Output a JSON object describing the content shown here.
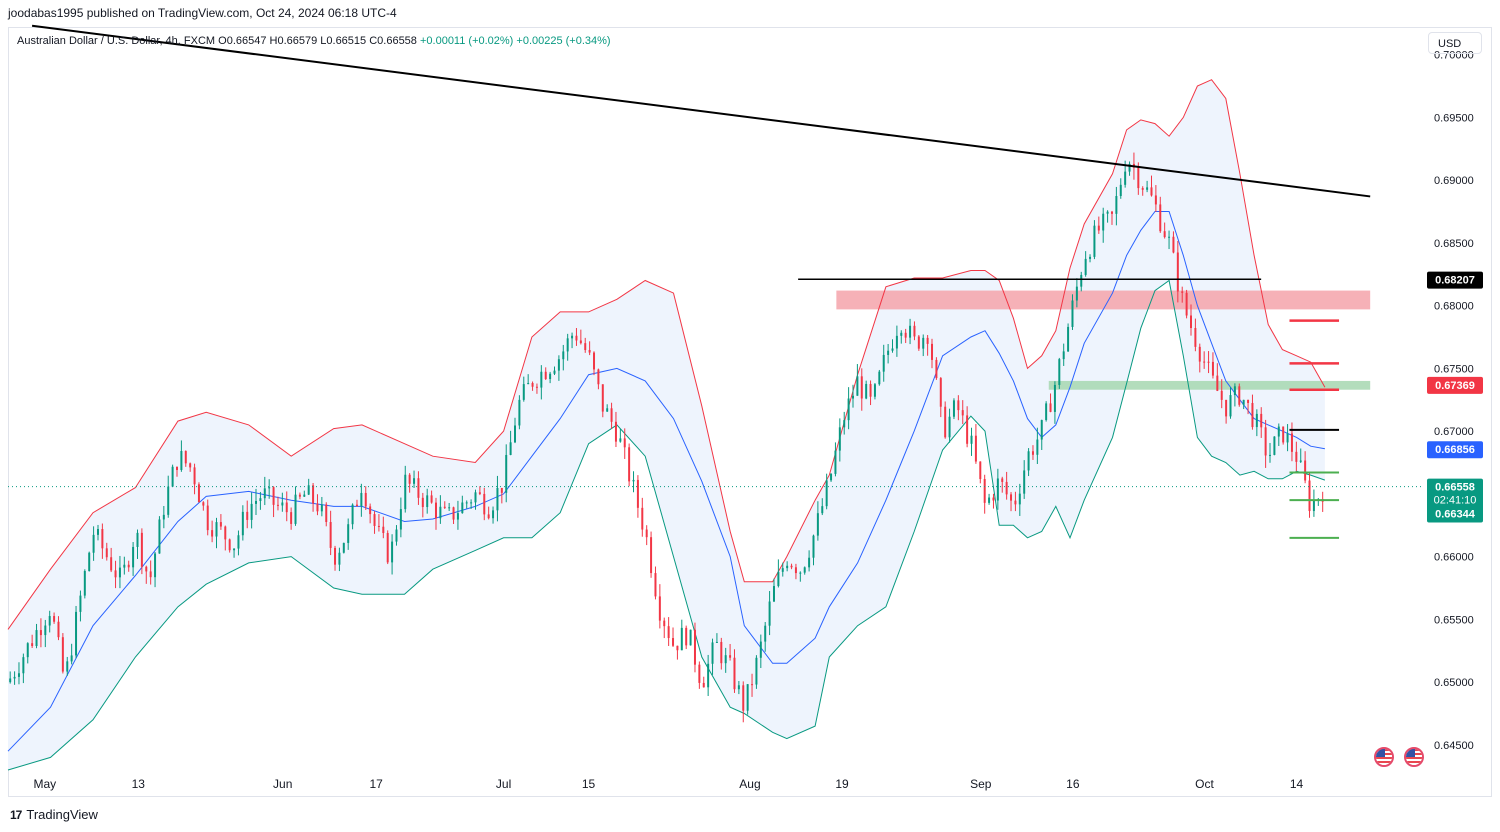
{
  "header": {
    "publisher_line": "joodabas1995 published on TradingView.com, Oct 24, 2024 06:18 UTC-4"
  },
  "symbol": {
    "name": "Australian Dollar / U.S. Dollar, 4h, FXCM",
    "ohlc": "O0.66547 H0.66579 L0.66515 C0.66558",
    "change": "+0.00011 (+0.02%) +0.00225 (+0.34%)"
  },
  "currency_button": "USD",
  "footer": {
    "brand": "TradingView",
    "logo_glyph": "17"
  },
  "colors": {
    "up": "#089981",
    "down": "#f23645",
    "upper_band": "#f23645",
    "lower_band": "#089981",
    "basis": "#2962ff",
    "band_fill": "#eef4fd"
  },
  "chart_data": {
    "type": "candlestick",
    "instrument": "AUDUSD",
    "timeframe": "4h",
    "ylim": [
      0.643,
      0.7022
    ],
    "y_ticks": [
      "0.70000",
      "0.69500",
      "0.69000",
      "0.68500",
      "0.68000",
      "0.67500",
      "0.67000",
      "0.66500",
      "0.66000",
      "0.65500",
      "0.65000",
      "0.64500"
    ],
    "x_ticks": [
      "May",
      "13",
      "Jun",
      "17",
      "Jul",
      "15",
      "Aug",
      "19",
      "Sep",
      "16",
      "Oct",
      "14"
    ],
    "price_scale_labels": [
      {
        "value": 0.68207,
        "label": "0.68207",
        "color": "#000000"
      },
      {
        "value": 0.67369,
        "label": "0.67369",
        "color": "#f23645"
      },
      {
        "value": 0.66856,
        "label": "0.66856",
        "color": "#2962ff"
      },
      {
        "value": 0.66558,
        "label": "0.66558",
        "color": "#089981"
      },
      {
        "value": 0.66344,
        "label": "0.66344",
        "color": "#089981"
      }
    ],
    "countdown": "02:41:10",
    "indicator": "Bollinger Bands",
    "series": [
      {
        "name": "Upper band",
        "points": [
          [
            0,
            0.6542
          ],
          [
            0.03,
            0.659
          ],
          [
            0.06,
            0.6635
          ],
          [
            0.09,
            0.6655
          ],
          [
            0.12,
            0.6708
          ],
          [
            0.14,
            0.6715
          ],
          [
            0.17,
            0.6705
          ],
          [
            0.2,
            0.668
          ],
          [
            0.23,
            0.6702
          ],
          [
            0.25,
            0.6705
          ],
          [
            0.28,
            0.669
          ],
          [
            0.3,
            0.668
          ],
          [
            0.33,
            0.6675
          ],
          [
            0.35,
            0.67
          ],
          [
            0.37,
            0.6775
          ],
          [
            0.39,
            0.6795
          ],
          [
            0.41,
            0.6795
          ],
          [
            0.43,
            0.6805
          ],
          [
            0.45,
            0.682
          ],
          [
            0.47,
            0.681
          ],
          [
            0.49,
            0.672
          ],
          [
            0.51,
            0.662
          ],
          [
            0.52,
            0.658
          ],
          [
            0.54,
            0.658
          ],
          [
            0.55,
            0.66
          ],
          [
            0.57,
            0.6645
          ],
          [
            0.58,
            0.6665
          ],
          [
            0.6,
            0.6745
          ],
          [
            0.62,
            0.6815
          ],
          [
            0.64,
            0.6822
          ],
          [
            0.66,
            0.6822
          ],
          [
            0.68,
            0.6828
          ],
          [
            0.69,
            0.6828
          ],
          [
            0.7,
            0.682
          ],
          [
            0.71,
            0.679
          ],
          [
            0.72,
            0.675
          ],
          [
            0.73,
            0.676
          ],
          [
            0.74,
            0.678
          ],
          [
            0.75,
            0.683
          ],
          [
            0.76,
            0.6865
          ],
          [
            0.78,
            0.6905
          ],
          [
            0.79,
            0.694
          ],
          [
            0.8,
            0.6948
          ],
          [
            0.81,
            0.6945
          ],
          [
            0.82,
            0.6935
          ],
          [
            0.83,
            0.695
          ],
          [
            0.84,
            0.6975
          ],
          [
            0.85,
            0.698
          ],
          [
            0.86,
            0.6965
          ],
          [
            0.87,
            0.6905
          ],
          [
            0.88,
            0.684
          ],
          [
            0.89,
            0.6785
          ],
          [
            0.9,
            0.6765
          ],
          [
            0.91,
            0.676
          ],
          [
            0.92,
            0.6755
          ],
          [
            0.93,
            0.6735
          ]
        ]
      },
      {
        "name": "Basis",
        "points": [
          [
            0,
            0.6445
          ],
          [
            0.03,
            0.648
          ],
          [
            0.06,
            0.6545
          ],
          [
            0.09,
            0.6585
          ],
          [
            0.12,
            0.6628
          ],
          [
            0.14,
            0.6648
          ],
          [
            0.17,
            0.6652
          ],
          [
            0.2,
            0.6645
          ],
          [
            0.23,
            0.664
          ],
          [
            0.25,
            0.664
          ],
          [
            0.28,
            0.6628
          ],
          [
            0.3,
            0.663
          ],
          [
            0.33,
            0.664
          ],
          [
            0.35,
            0.665
          ],
          [
            0.37,
            0.668
          ],
          [
            0.39,
            0.671
          ],
          [
            0.41,
            0.6745
          ],
          [
            0.43,
            0.675
          ],
          [
            0.45,
            0.674
          ],
          [
            0.47,
            0.671
          ],
          [
            0.49,
            0.666
          ],
          [
            0.51,
            0.66
          ],
          [
            0.52,
            0.6545
          ],
          [
            0.54,
            0.6515
          ],
          [
            0.55,
            0.6515
          ],
          [
            0.57,
            0.6535
          ],
          [
            0.58,
            0.656
          ],
          [
            0.6,
            0.6595
          ],
          [
            0.62,
            0.6645
          ],
          [
            0.64,
            0.67
          ],
          [
            0.66,
            0.676
          ],
          [
            0.68,
            0.6775
          ],
          [
            0.69,
            0.678
          ],
          [
            0.7,
            0.6762
          ],
          [
            0.71,
            0.674
          ],
          [
            0.72,
            0.671
          ],
          [
            0.73,
            0.6695
          ],
          [
            0.74,
            0.6705
          ],
          [
            0.75,
            0.6735
          ],
          [
            0.76,
            0.677
          ],
          [
            0.78,
            0.681
          ],
          [
            0.79,
            0.684
          ],
          [
            0.8,
            0.686
          ],
          [
            0.81,
            0.6875
          ],
          [
            0.82,
            0.6875
          ],
          [
            0.83,
            0.684
          ],
          [
            0.84,
            0.68
          ],
          [
            0.85,
            0.677
          ],
          [
            0.86,
            0.674
          ],
          [
            0.87,
            0.6725
          ],
          [
            0.88,
            0.671
          ],
          [
            0.89,
            0.6705
          ],
          [
            0.9,
            0.67
          ],
          [
            0.91,
            0.6695
          ],
          [
            0.92,
            0.6688
          ],
          [
            0.93,
            0.6686
          ]
        ]
      },
      {
        "name": "Lower band",
        "points": [
          [
            0,
            0.643
          ],
          [
            0.03,
            0.644
          ],
          [
            0.06,
            0.647
          ],
          [
            0.09,
            0.652
          ],
          [
            0.12,
            0.656
          ],
          [
            0.14,
            0.6578
          ],
          [
            0.17,
            0.6595
          ],
          [
            0.2,
            0.66
          ],
          [
            0.23,
            0.6575
          ],
          [
            0.25,
            0.657
          ],
          [
            0.28,
            0.657
          ],
          [
            0.3,
            0.659
          ],
          [
            0.33,
            0.6605
          ],
          [
            0.35,
            0.6615
          ],
          [
            0.37,
            0.6615
          ],
          [
            0.39,
            0.6635
          ],
          [
            0.41,
            0.669
          ],
          [
            0.43,
            0.6705
          ],
          [
            0.45,
            0.668
          ],
          [
            0.47,
            0.66
          ],
          [
            0.49,
            0.652
          ],
          [
            0.51,
            0.648
          ],
          [
            0.52,
            0.6475
          ],
          [
            0.54,
            0.646
          ],
          [
            0.55,
            0.6455
          ],
          [
            0.57,
            0.6465
          ],
          [
            0.58,
            0.652
          ],
          [
            0.6,
            0.6545
          ],
          [
            0.62,
            0.656
          ],
          [
            0.64,
            0.662
          ],
          [
            0.66,
            0.6685
          ],
          [
            0.68,
            0.6712
          ],
          [
            0.69,
            0.67
          ],
          [
            0.7,
            0.6625
          ],
          [
            0.71,
            0.6625
          ],
          [
            0.72,
            0.6615
          ],
          [
            0.73,
            0.662
          ],
          [
            0.74,
            0.664
          ],
          [
            0.75,
            0.6615
          ],
          [
            0.76,
            0.6645
          ],
          [
            0.78,
            0.6695
          ],
          [
            0.79,
            0.6738
          ],
          [
            0.8,
            0.6782
          ],
          [
            0.81,
            0.6812
          ],
          [
            0.82,
            0.682
          ],
          [
            0.83,
            0.676
          ],
          [
            0.84,
            0.6695
          ],
          [
            0.85,
            0.668
          ],
          [
            0.86,
            0.6675
          ],
          [
            0.87,
            0.6665
          ],
          [
            0.88,
            0.6668
          ],
          [
            0.89,
            0.6662
          ],
          [
            0.9,
            0.6662
          ],
          [
            0.91,
            0.6668
          ],
          [
            0.92,
            0.6665
          ],
          [
            0.93,
            0.6661
          ]
        ]
      },
      {
        "name": "Close path",
        "points": [
          [
            0,
            0.65
          ],
          [
            0.02,
            0.654
          ],
          [
            0.03,
            0.656
          ],
          [
            0.04,
            0.65
          ],
          [
            0.05,
            0.656
          ],
          [
            0.06,
            0.662
          ],
          [
            0.07,
            0.66
          ],
          [
            0.08,
            0.658
          ],
          [
            0.09,
            0.662
          ],
          [
            0.1,
            0.658
          ],
          [
            0.11,
            0.664
          ],
          [
            0.12,
            0.668
          ],
          [
            0.13,
            0.667
          ],
          [
            0.14,
            0.663
          ],
          [
            0.15,
            0.662
          ],
          [
            0.16,
            0.661
          ],
          [
            0.17,
            0.664
          ],
          [
            0.18,
            0.665
          ],
          [
            0.19,
            0.664
          ],
          [
            0.2,
            0.6635
          ],
          [
            0.21,
            0.665
          ],
          [
            0.22,
            0.664
          ],
          [
            0.23,
            0.66
          ],
          [
            0.24,
            0.662
          ],
          [
            0.25,
            0.666
          ],
          [
            0.26,
            0.662
          ],
          [
            0.27,
            0.66
          ],
          [
            0.28,
            0.666
          ],
          [
            0.29,
            0.665
          ],
          [
            0.3,
            0.664
          ],
          [
            0.31,
            0.663
          ],
          [
            0.32,
            0.664
          ],
          [
            0.33,
            0.665
          ],
          [
            0.34,
            0.664
          ],
          [
            0.35,
            0.666
          ],
          [
            0.36,
            0.672
          ],
          [
            0.37,
            0.674
          ],
          [
            0.38,
            0.675
          ],
          [
            0.39,
            0.676
          ],
          [
            0.4,
            0.678
          ],
          [
            0.41,
            0.676
          ],
          [
            0.42,
            0.672
          ],
          [
            0.43,
            0.67
          ],
          [
            0.44,
            0.666
          ],
          [
            0.45,
            0.662
          ],
          [
            0.46,
            0.656
          ],
          [
            0.47,
            0.653
          ],
          [
            0.48,
            0.654
          ],
          [
            0.49,
            0.65
          ],
          [
            0.5,
            0.653
          ],
          [
            0.51,
            0.651
          ],
          [
            0.52,
            0.648
          ],
          [
            0.53,
            0.652
          ],
          [
            0.54,
            0.657
          ],
          [
            0.55,
            0.66
          ],
          [
            0.56,
            0.659
          ],
          [
            0.57,
            0.662
          ],
          [
            0.58,
            0.666
          ],
          [
            0.59,
            0.671
          ],
          [
            0.6,
            0.674
          ],
          [
            0.61,
            0.672
          ],
          [
            0.62,
            0.676
          ],
          [
            0.63,
            0.679
          ],
          [
            0.64,
            0.677
          ],
          [
            0.65,
            0.678
          ],
          [
            0.66,
            0.67
          ],
          [
            0.67,
            0.672
          ],
          [
            0.68,
            0.669
          ],
          [
            0.69,
            0.664
          ],
          [
            0.7,
            0.666
          ],
          [
            0.71,
            0.664
          ],
          [
            0.72,
            0.668
          ],
          [
            0.73,
            0.67
          ],
          [
            0.74,
            0.674
          ],
          [
            0.75,
            0.679
          ],
          [
            0.76,
            0.684
          ],
          [
            0.77,
            0.686
          ],
          [
            0.78,
            0.687
          ],
          [
            0.79,
            0.692
          ],
          [
            0.8,
            0.69
          ],
          [
            0.81,
            0.688
          ],
          [
            0.82,
            0.685
          ],
          [
            0.83,
            0.68
          ],
          [
            0.84,
            0.677
          ],
          [
            0.85,
            0.674
          ],
          [
            0.86,
            0.672
          ],
          [
            0.87,
            0.673
          ],
          [
            0.88,
            0.671
          ],
          [
            0.89,
            0.668
          ],
          [
            0.9,
            0.67
          ],
          [
            0.91,
            0.668
          ],
          [
            0.92,
            0.664
          ],
          [
            0.93,
            0.6656
          ]
        ]
      }
    ],
    "annotations": {
      "trendline": [
        [
          0.017,
          0.7023
        ],
        [
          0.962,
          0.6887
        ]
      ],
      "resistance_zone": {
        "from": 0.6797,
        "to": 0.6812,
        "x": [
          0.585,
          0.962
        ],
        "color": "#f5a3aa"
      },
      "support_zone": {
        "from": 0.6733,
        "to": 0.674,
        "x": [
          0.735,
          0.962
        ],
        "color": "#a6d7b0"
      },
      "black_line_68207": {
        "value": 0.6821,
        "x": [
          0.558,
          0.885
        ]
      },
      "black_line_670": {
        "value": 0.6701,
        "x": [
          0.905,
          0.94
        ]
      },
      "red_levels": [
        {
          "value": 0.6788,
          "x": [
            0.905,
            0.94
          ]
        },
        {
          "value": 0.6754,
          "x": [
            0.905,
            0.94
          ]
        },
        {
          "value": 0.6733,
          "x": [
            0.905,
            0.94
          ]
        }
      ],
      "green_levels": [
        {
          "value": 0.6667,
          "x": [
            0.905,
            0.94
          ]
        },
        {
          "value": 0.6645,
          "x": [
            0.905,
            0.94
          ]
        },
        {
          "value": 0.6615,
          "x": [
            0.905,
            0.94
          ]
        }
      ],
      "last_price": 0.66558
    }
  }
}
